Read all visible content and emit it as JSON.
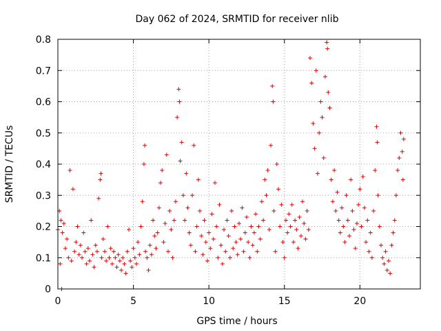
{
  "chart_data": {
    "type": "scatter",
    "title": "Day 062 of 2024, SRMTID for receiver nlib",
    "xlabel": "GPS time / hours",
    "ylabel": "SRMTID / TECUs",
    "xlim": [
      0,
      24
    ],
    "ylim": [
      0,
      0.8
    ],
    "xticks": [
      0,
      5,
      10,
      15,
      20
    ],
    "xtick_labels": [
      "0",
      "5",
      "10",
      "15",
      "20"
    ],
    "yticks": [
      0,
      0.1,
      0.2,
      0.3,
      0.4,
      0.5,
      0.6,
      0.7,
      0.8
    ],
    "ytick_labels": [
      "0",
      "0.1",
      "0.2",
      "0.3",
      "0.4",
      "0.5",
      "0.6",
      "0.7",
      "0.8"
    ],
    "grid": true,
    "marker": "+",
    "color": "#e00000",
    "series": [
      {
        "name": "SRMTID",
        "points": [
          [
            0.0,
            0.19
          ],
          [
            0.1,
            0.25
          ],
          [
            0.15,
            0.08
          ],
          [
            0.2,
            0.22
          ],
          [
            0.25,
            0.0
          ],
          [
            0.3,
            0.18
          ],
          [
            0.4,
            0.21
          ],
          [
            0.5,
            0.13
          ],
          [
            0.6,
            0.16
          ],
          [
            0.7,
            0.1
          ],
          [
            0.8,
            0.38
          ],
          [
            0.9,
            0.09
          ],
          [
            1.0,
            0.32
          ],
          [
            1.1,
            0.12
          ],
          [
            1.2,
            0.15
          ],
          [
            1.3,
            0.2
          ],
          [
            1.4,
            0.11
          ],
          [
            1.5,
            0.14
          ],
          [
            1.6,
            0.1
          ],
          [
            1.7,
            0.18
          ],
          [
            1.8,
            0.12
          ],
          [
            1.9,
            0.08
          ],
          [
            2.0,
            0.13
          ],
          [
            2.1,
            0.09
          ],
          [
            2.2,
            0.22
          ],
          [
            2.3,
            0.11
          ],
          [
            2.4,
            0.07
          ],
          [
            2.5,
            0.14
          ],
          [
            2.6,
            0.12
          ],
          [
            2.7,
            0.29
          ],
          [
            2.8,
            0.35
          ],
          [
            2.85,
            0.37
          ],
          [
            2.9,
            0.1
          ],
          [
            3.0,
            0.16
          ],
          [
            3.1,
            0.12
          ],
          [
            3.2,
            0.09
          ],
          [
            3.3,
            0.2
          ],
          [
            3.4,
            0.1
          ],
          [
            3.5,
            0.13
          ],
          [
            3.6,
            0.08
          ],
          [
            3.7,
            0.12
          ],
          [
            3.8,
            0.1
          ],
          [
            3.9,
            0.07
          ],
          [
            4.0,
            0.11
          ],
          [
            4.1,
            0.09
          ],
          [
            4.2,
            0.06
          ],
          [
            4.3,
            0.1
          ],
          [
            4.4,
            0.08
          ],
          [
            4.5,
            0.05
          ],
          [
            4.6,
            0.12
          ],
          [
            4.7,
            0.19
          ],
          [
            4.8,
            0.09
          ],
          [
            4.9,
            0.07
          ],
          [
            5.0,
            0.13
          ],
          [
            5.1,
            0.1
          ],
          [
            5.2,
            0.08
          ],
          [
            5.3,
            0.15
          ],
          [
            5.4,
            0.11
          ],
          [
            5.5,
            0.2
          ],
          [
            5.6,
            0.28
          ],
          [
            5.7,
            0.4
          ],
          [
            5.75,
            0.46
          ],
          [
            5.8,
            0.12
          ],
          [
            5.9,
            0.1
          ],
          [
            6.0,
            0.06
          ],
          [
            6.1,
            0.14
          ],
          [
            6.2,
            0.11
          ],
          [
            6.3,
            0.22
          ],
          [
            6.4,
            0.17
          ],
          [
            6.5,
            0.13
          ],
          [
            6.6,
            0.18
          ],
          [
            6.7,
            0.26
          ],
          [
            6.8,
            0.34
          ],
          [
            6.9,
            0.38
          ],
          [
            7.0,
            0.15
          ],
          [
            7.1,
            0.21
          ],
          [
            7.2,
            0.43
          ],
          [
            7.3,
            0.12
          ],
          [
            7.4,
            0.25
          ],
          [
            7.5,
            0.19
          ],
          [
            7.6,
            0.1
          ],
          [
            7.7,
            0.22
          ],
          [
            7.8,
            0.28
          ],
          [
            7.9,
            0.55
          ],
          [
            8.0,
            0.64
          ],
          [
            8.05,
            0.6
          ],
          [
            8.1,
            0.41
          ],
          [
            8.2,
            0.47
          ],
          [
            8.3,
            0.3
          ],
          [
            8.4,
            0.22
          ],
          [
            8.5,
            0.37
          ],
          [
            8.6,
            0.26
          ],
          [
            8.7,
            0.18
          ],
          [
            8.8,
            0.14
          ],
          [
            8.9,
            0.3
          ],
          [
            9.0,
            0.46
          ],
          [
            9.1,
            0.12
          ],
          [
            9.2,
            0.2
          ],
          [
            9.3,
            0.35
          ],
          [
            9.4,
            0.25
          ],
          [
            9.5,
            0.17
          ],
          [
            9.6,
            0.11
          ],
          [
            9.7,
            0.22
          ],
          [
            9.8,
            0.15
          ],
          [
            9.9,
            0.09
          ],
          [
            10.0,
            0.18
          ],
          [
            10.1,
            0.13
          ],
          [
            10.2,
            0.24
          ],
          [
            10.3,
            0.16
          ],
          [
            10.4,
            0.34
          ],
          [
            10.5,
            0.2
          ],
          [
            10.6,
            0.1
          ],
          [
            10.7,
            0.27
          ],
          [
            10.8,
            0.14
          ],
          [
            10.9,
            0.08
          ],
          [
            11.0,
            0.19
          ],
          [
            11.1,
            0.12
          ],
          [
            11.2,
            0.22
          ],
          [
            11.3,
            0.17
          ],
          [
            11.4,
            0.1
          ],
          [
            11.5,
            0.25
          ],
          [
            11.6,
            0.13
          ],
          [
            11.7,
            0.2
          ],
          [
            11.8,
            0.15
          ],
          [
            11.9,
            0.11
          ],
          [
            12.0,
            0.21
          ],
          [
            12.1,
            0.16
          ],
          [
            12.2,
            0.26
          ],
          [
            12.3,
            0.12
          ],
          [
            12.4,
            0.18
          ],
          [
            12.5,
            0.23
          ],
          [
            12.6,
            0.15
          ],
          [
            12.7,
            0.1
          ],
          [
            12.8,
            0.2
          ],
          [
            12.9,
            0.14
          ],
          [
            13.0,
            0.18
          ],
          [
            13.1,
            0.24
          ],
          [
            13.2,
            0.12
          ],
          [
            13.3,
            0.2
          ],
          [
            13.4,
            0.16
          ],
          [
            13.5,
            0.28
          ],
          [
            13.6,
            0.22
          ],
          [
            13.7,
            0.35
          ],
          [
            13.8,
            0.3
          ],
          [
            13.9,
            0.38
          ],
          [
            14.0,
            0.19
          ],
          [
            14.1,
            0.46
          ],
          [
            14.2,
            0.65
          ],
          [
            14.25,
            0.6
          ],
          [
            14.3,
            0.25
          ],
          [
            14.4,
            0.12
          ],
          [
            14.5,
            0.4
          ],
          [
            14.6,
            0.32
          ],
          [
            14.7,
            0.2
          ],
          [
            14.8,
            0.27
          ],
          [
            14.9,
            0.15
          ],
          [
            15.0,
            0.1
          ],
          [
            15.1,
            0.22
          ],
          [
            15.2,
            0.18
          ],
          [
            15.3,
            0.24
          ],
          [
            15.4,
            0.2
          ],
          [
            15.5,
            0.27
          ],
          [
            15.6,
            0.15
          ],
          [
            15.7,
            0.22
          ],
          [
            15.8,
            0.19
          ],
          [
            15.9,
            0.13
          ],
          [
            16.0,
            0.23
          ],
          [
            16.1,
            0.17
          ],
          [
            16.2,
            0.28
          ],
          [
            16.3,
            0.21
          ],
          [
            16.4,
            0.16
          ],
          [
            16.5,
            0.25
          ],
          [
            16.6,
            0.19
          ],
          [
            16.7,
            0.74
          ],
          [
            16.8,
            0.66
          ],
          [
            16.9,
            0.53
          ],
          [
            17.0,
            0.45
          ],
          [
            17.1,
            0.7
          ],
          [
            17.2,
            0.37
          ],
          [
            17.3,
            0.5
          ],
          [
            17.4,
            0.6
          ],
          [
            17.5,
            0.55
          ],
          [
            17.6,
            0.42
          ],
          [
            17.7,
            0.68
          ],
          [
            17.8,
            0.79
          ],
          [
            17.85,
            0.77
          ],
          [
            17.9,
            0.63
          ],
          [
            18.0,
            0.58
          ],
          [
            18.1,
            0.35
          ],
          [
            18.2,
            0.28
          ],
          [
            18.3,
            0.38
          ],
          [
            18.4,
            0.25
          ],
          [
            18.5,
            0.31
          ],
          [
            18.6,
            0.22
          ],
          [
            18.7,
            0.18
          ],
          [
            18.8,
            0.26
          ],
          [
            18.9,
            0.2
          ],
          [
            19.0,
            0.15
          ],
          [
            19.1,
            0.3
          ],
          [
            19.2,
            0.22
          ],
          [
            19.3,
            0.17
          ],
          [
            19.4,
            0.35
          ],
          [
            19.5,
            0.25
          ],
          [
            19.6,
            0.19
          ],
          [
            19.7,
            0.13
          ],
          [
            19.8,
            0.21
          ],
          [
            19.9,
            0.27
          ],
          [
            20.0,
            0.32
          ],
          [
            20.1,
            0.2
          ],
          [
            20.2,
            0.36
          ],
          [
            20.3,
            0.26
          ],
          [
            20.4,
            0.15
          ],
          [
            20.5,
            0.22
          ],
          [
            20.6,
            0.12
          ],
          [
            20.7,
            0.18
          ],
          [
            20.8,
            0.1
          ],
          [
            20.9,
            0.25
          ],
          [
            21.0,
            0.38
          ],
          [
            21.1,
            0.52
          ],
          [
            21.15,
            0.47
          ],
          [
            21.2,
            0.3
          ],
          [
            21.3,
            0.2
          ],
          [
            21.4,
            0.14
          ],
          [
            21.5,
            0.1
          ],
          [
            21.6,
            0.08
          ],
          [
            21.7,
            0.12
          ],
          [
            21.8,
            0.06
          ],
          [
            21.9,
            0.09
          ],
          [
            22.0,
            0.05
          ],
          [
            22.1,
            0.14
          ],
          [
            22.2,
            0.18
          ],
          [
            22.3,
            0.22
          ],
          [
            22.4,
            0.3
          ],
          [
            22.5,
            0.38
          ],
          [
            22.6,
            0.42
          ],
          [
            22.7,
            0.5
          ],
          [
            22.8,
            0.44
          ],
          [
            22.85,
            0.35
          ],
          [
            22.9,
            0.48
          ]
        ]
      }
    ]
  }
}
